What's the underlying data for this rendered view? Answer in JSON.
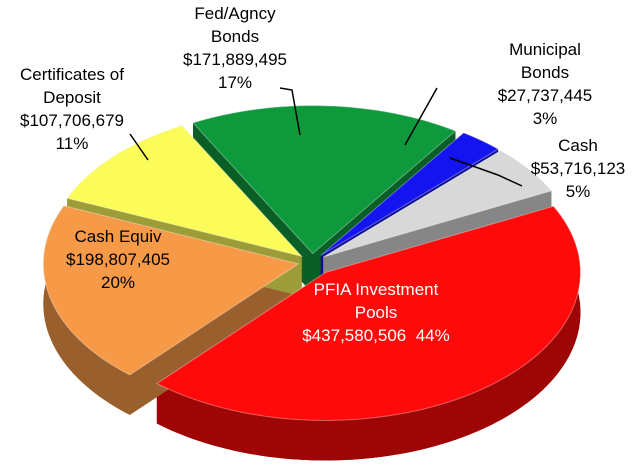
{
  "chart_data": {
    "type": "pie",
    "categories": [
      "Fed/Agncy\nBonds",
      "Municipal Bonds",
      "Cash",
      "PFIA Investment\nPools",
      "Cash Equiv",
      "Certificates of\nDeposit"
    ],
    "values": [
      171889495,
      27737445,
      53716123,
      437580506,
      198807405,
      107706679
    ],
    "value_labels": [
      "$171,889,495",
      "$27,737,445",
      "$53,716,123",
      "$437,580,506",
      "$198,807,405",
      "$107,706,679"
    ],
    "percent_labels": [
      "17%",
      "3%",
      "5%",
      "44%",
      "20%",
      "11%"
    ],
    "colors": [
      "#0e9a3c",
      "#1414f0",
      "#d8d8d8",
      "#ff0a0a",
      "#f79a48",
      "#fbfb5a"
    ]
  }
}
